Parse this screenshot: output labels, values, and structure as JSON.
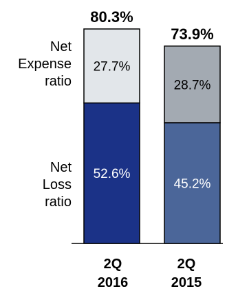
{
  "chart_data": {
    "type": "bar",
    "stacked": true,
    "categories": [
      [
        "2Q",
        "2016"
      ],
      [
        "2Q",
        "2015"
      ]
    ],
    "totals": [
      "80.3%",
      "73.9%"
    ],
    "series": [
      {
        "name": "Net Loss ratio",
        "label_lines": [
          "Net",
          "Loss",
          "ratio"
        ],
        "values": [
          52.6,
          45.2
        ],
        "labels": [
          "52.6%",
          "45.2%"
        ],
        "colors": [
          "#1b3287",
          "#4b6699"
        ]
      },
      {
        "name": "Net Expense ratio",
        "label_lines": [
          "Net",
          "Expense",
          "ratio"
        ],
        "values": [
          27.7,
          28.7
        ],
        "labels": [
          "27.7%",
          "28.7%"
        ],
        "colors": [
          "#e2e6ea",
          "#a3aab2"
        ]
      }
    ],
    "ylim": [
      0,
      80.3
    ],
    "grid": false,
    "legend": "left"
  }
}
